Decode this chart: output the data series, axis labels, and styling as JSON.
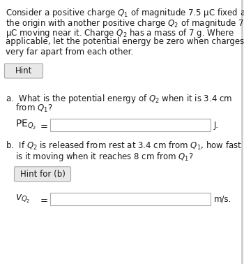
{
  "bg_color": "#ffffff",
  "text_color": "#1a1a1a",
  "hint_label": "Hint",
  "pe_unit": "J.",
  "part_b_text_1": "b.  If $Q_2$ is released from rest at 3.4 cm from $Q_1$, how fast",
  "part_b_text_2": "     is it moving when it reaches 8 cm from $Q_1$?",
  "hint_b_label": "Hint for (b)",
  "v_unit": "m/s.",
  "box_facecolor": "#ffffff",
  "box_edgecolor": "#aaaaaa",
  "hint_box_facecolor": "#e8e8e8",
  "hint_box_edgecolor": "#aaaaaa",
  "font_size": 8.5,
  "right_border_color": "#cccccc"
}
